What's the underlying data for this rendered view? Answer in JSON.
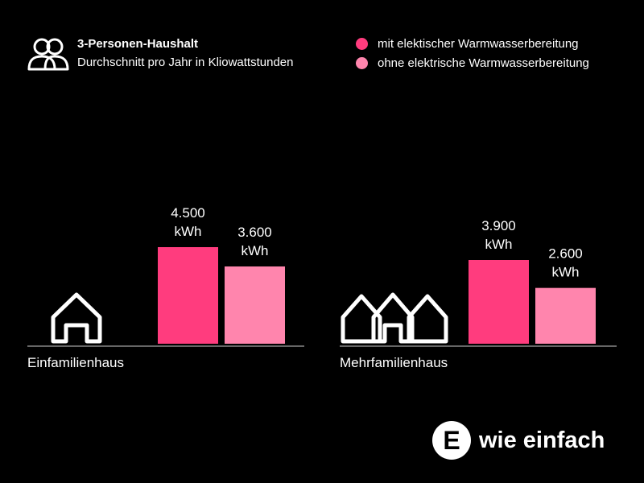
{
  "header": {
    "title": "3-Personen-Haushalt",
    "subtitle": "Durchschnitt pro Jahr in Kliowattstunden",
    "icon": "people-icon"
  },
  "legend": {
    "items": [
      {
        "label": "mit elektischer Warmwasserbereitung",
        "color": "#ff3c7e"
      },
      {
        "label": "ohne elektrische Warmwasserbereitung",
        "color": "#ff85ad"
      }
    ]
  },
  "chart_data": {
    "type": "bar",
    "categories": [
      "Einfamilienhaus",
      "Mehrfamilienhaus"
    ],
    "category_icons": [
      "house-icon",
      "houses-icon"
    ],
    "series": [
      {
        "name": "mit elektischer Warmwasserbereitung",
        "values": [
          4500,
          3900
        ],
        "value_labels": [
          "4.500",
          "3.900"
        ],
        "color": "#ff3c7e"
      },
      {
        "name": "ohne elektrische Warmwasserbereitung",
        "values": [
          3600,
          2600
        ],
        "value_labels": [
          "3.600",
          "2.600"
        ],
        "color": "#ff85ad"
      }
    ],
    "unit": "kWh",
    "ylim": [
      0,
      4500
    ],
    "grid": false,
    "legend_position": "top-right"
  },
  "brand": {
    "logo_letter": "E",
    "text": "wie einfach"
  }
}
